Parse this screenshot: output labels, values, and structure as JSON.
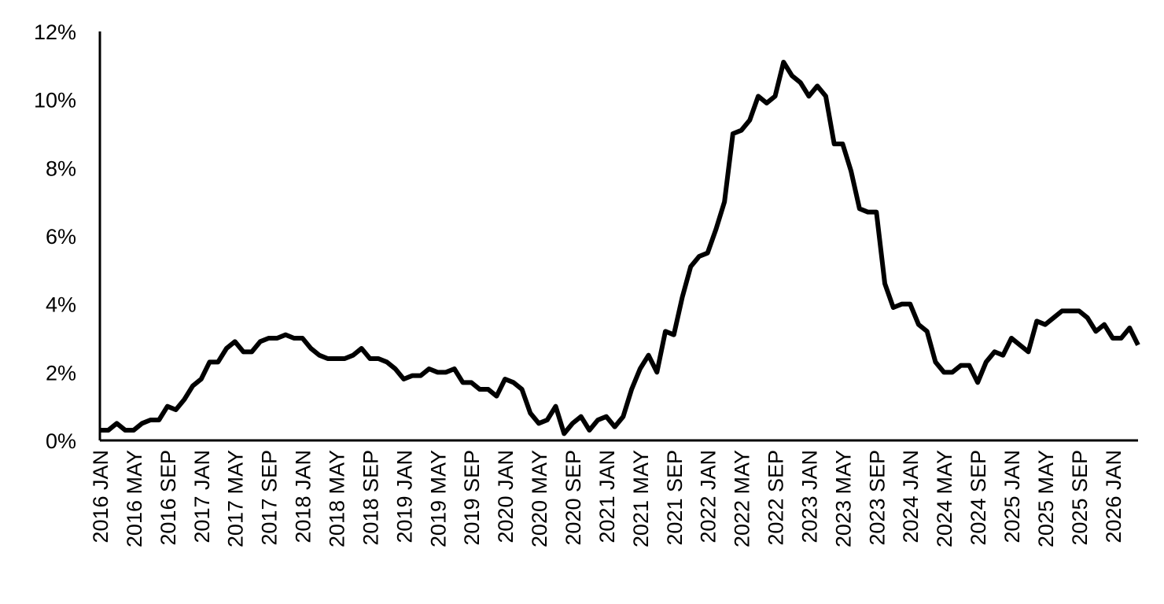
{
  "chart_data": {
    "type": "line",
    "title": "",
    "xlabel": "",
    "ylabel": "",
    "grid": false,
    "legend": "none",
    "line_color": "#000000",
    "ylim": [
      0,
      12
    ],
    "y_ticks": [
      {
        "value": 0,
        "label": "0%"
      },
      {
        "value": 2,
        "label": "2%"
      },
      {
        "value": 4,
        "label": "4%"
      },
      {
        "value": 6,
        "label": "6%"
      },
      {
        "value": 8,
        "label": "8%"
      },
      {
        "value": 10,
        "label": "10%"
      },
      {
        "value": 12,
        "label": "12%"
      }
    ],
    "x_tick_labels": [
      "2016 JAN",
      "2016 MAY",
      "2016 SEP",
      "2017 JAN",
      "2017 MAY",
      "2017 SEP",
      "2018 JAN",
      "2018 MAY",
      "2018 SEP",
      "2019 JAN",
      "2019 MAY",
      "2019 SEP",
      "2020 JAN",
      "2020 MAY",
      "2020 SEP",
      "2021 JAN",
      "2021 MAY",
      "2021 SEP",
      "2022 JAN",
      "2022 MAY",
      "2022 SEP",
      "2023 JAN",
      "2023 MAY",
      "2023 SEP",
      "2024 JAN",
      "2024 MAY",
      "2024 SEP",
      "2025 JAN",
      "2025 MAY",
      "2025 SEP",
      "2026 JAN"
    ],
    "x_start": "2016-01",
    "x_end": "2026-04",
    "series": [
      {
        "values": [
          0.3,
          0.3,
          0.5,
          0.3,
          0.3,
          0.5,
          0.6,
          0.6,
          1.0,
          0.9,
          1.2,
          1.6,
          1.8,
          2.3,
          2.3,
          2.7,
          2.9,
          2.6,
          2.6,
          2.9,
          3.0,
          3.0,
          3.1,
          3.0,
          3.0,
          2.7,
          2.5,
          2.4,
          2.4,
          2.4,
          2.5,
          2.7,
          2.4,
          2.4,
          2.3,
          2.1,
          1.8,
          1.9,
          1.9,
          2.1,
          2.0,
          2.0,
          2.1,
          1.7,
          1.7,
          1.5,
          1.5,
          1.3,
          1.8,
          1.7,
          1.5,
          0.8,
          0.5,
          0.6,
          1.0,
          0.2,
          0.5,
          0.7,
          0.3,
          0.6,
          0.7,
          0.4,
          0.7,
          1.5,
          2.1,
          2.5,
          2.0,
          3.2,
          3.1,
          4.2,
          5.1,
          5.4,
          5.5,
          6.2,
          7.0,
          9.0,
          9.1,
          9.4,
          10.1,
          9.9,
          10.1,
          11.1,
          10.7,
          10.5,
          10.1,
          10.4,
          10.1,
          8.7,
          8.7,
          7.9,
          6.8,
          6.7,
          6.7,
          4.6,
          3.9,
          4.0,
          4.0,
          3.4,
          3.2,
          2.3,
          2.0,
          2.0,
          2.2,
          2.2,
          1.7,
          2.3,
          2.6,
          2.5,
          3.0,
          2.8,
          2.6,
          3.5,
          3.4,
          3.6,
          3.8,
          3.8,
          3.8,
          3.6,
          3.2,
          3.4,
          3.0,
          3.0,
          3.3,
          2.8
        ]
      }
    ]
  }
}
